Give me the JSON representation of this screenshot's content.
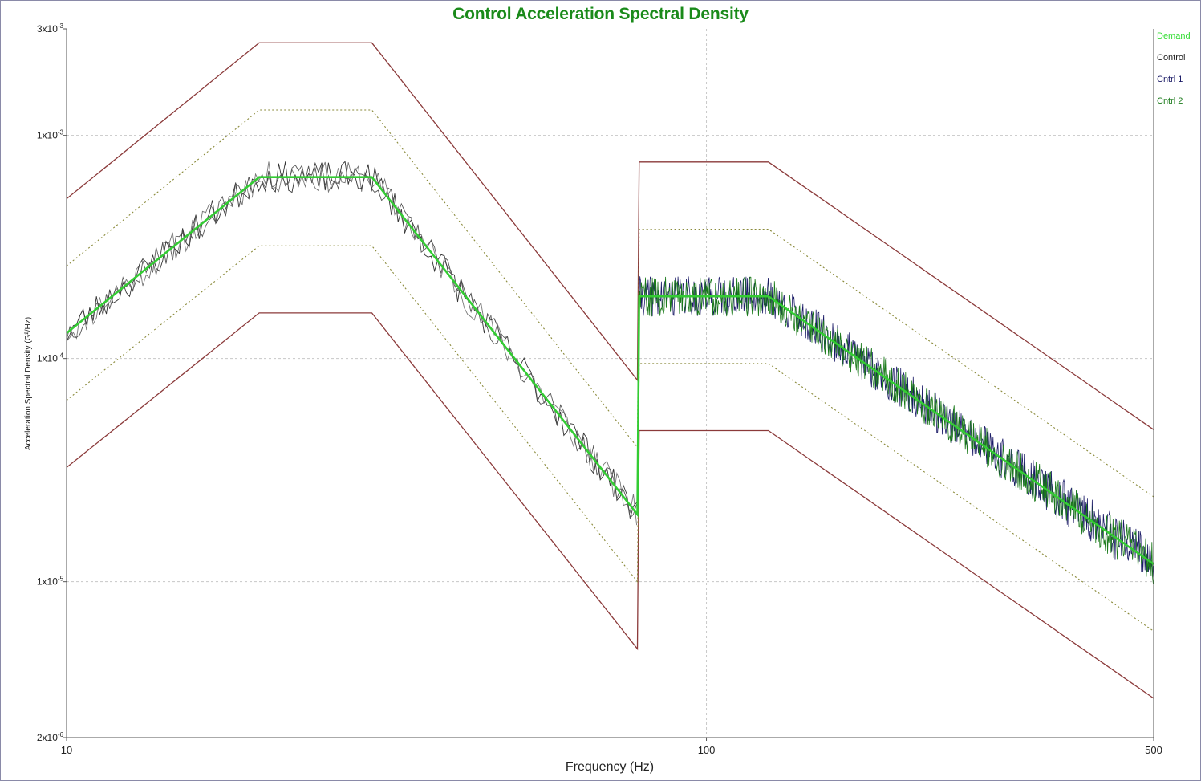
{
  "chart_data": {
    "type": "line",
    "title": "Control Acceleration Spectral Density",
    "xlabel": "Frequency (Hz)",
    "ylabel": "Acceleration Spectral Density (G²/Hz)",
    "x_scale": "log",
    "y_scale": "log",
    "xlim": [
      10,
      500
    ],
    "ylim": [
      2e-06,
      0.003
    ],
    "x_ticks": [
      {
        "value": 10,
        "label": "10"
      },
      {
        "value": 100,
        "label": "100"
      },
      {
        "value": 500,
        "label": "500"
      }
    ],
    "y_ticks": [
      {
        "value": 0.003,
        "base": "3x10",
        "exp": "-3"
      },
      {
        "value": 0.001,
        "base": "1x10",
        "exp": "-3"
      },
      {
        "value": 0.0001,
        "base": "1x10",
        "exp": "-4"
      },
      {
        "value": 1e-05,
        "base": "1x10",
        "exp": "-5"
      },
      {
        "value": 2e-06,
        "base": "2x10",
        "exp": "-6"
      }
    ],
    "grid": true,
    "legend_position": "top-right",
    "legend": [
      {
        "name": "Demand",
        "color": "#33dd33"
      },
      {
        "name": "Control",
        "color": "#222222"
      },
      {
        "name": "Cntrl 1",
        "color": "#1a1a66"
      },
      {
        "name": "Cntrl 2",
        "color": "#1a7a1a"
      }
    ],
    "demand": {
      "x": [
        10,
        20,
        30,
        78,
        78.5,
        125,
        500
      ],
      "y": [
        0.00013,
        0.00065,
        0.00065,
        2e-05,
        0.00019,
        0.00019,
        1.2e-05
      ]
    },
    "abort_upper": {
      "x": [
        10,
        20,
        30,
        78,
        78.5,
        125,
        500
      ],
      "y": [
        0.00052,
        0.0026,
        0.0026,
        8e-05,
        0.00076,
        0.00076,
        4.8e-05
      ]
    },
    "abort_lower": {
      "x": [
        10,
        20,
        30,
        78,
        78.5,
        125,
        500
      ],
      "y": [
        3.25e-05,
        0.00016,
        0.00016,
        5e-06,
        4.75e-05,
        4.75e-05,
        3e-06
      ]
    },
    "alarm_upper": {
      "x": [
        10,
        20,
        30,
        78,
        78.5,
        125,
        500
      ],
      "y": [
        0.00026,
        0.0013,
        0.0013,
        4e-05,
        0.00038,
        0.00038,
        2.4e-05
      ]
    },
    "alarm_lower": {
      "x": [
        10,
        20,
        30,
        78,
        78.5,
        125,
        500
      ],
      "y": [
        6.5e-05,
        0.00032,
        0.00032,
        1e-05,
        9.5e-05,
        9.5e-05,
        6e-06
      ]
    },
    "colors": {
      "demand": "#33cc33",
      "abort": "#8b3a3a",
      "alarm": "#8a8a3a",
      "control": "#333333",
      "cntrl1": "#1a1a66",
      "cntrl2": "#1a7a1a",
      "grid": "#c8c8c8",
      "title": "#1a8a1a"
    }
  }
}
